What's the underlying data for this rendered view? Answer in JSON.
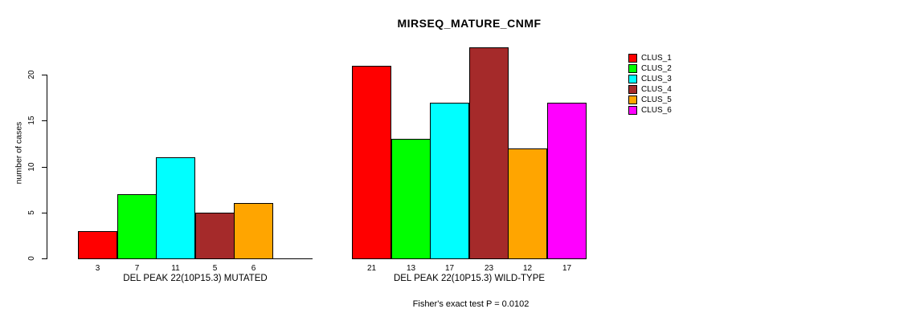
{
  "chart_data": {
    "type": "bar",
    "title": "MIRSEQ_MATURE_CNMF",
    "ylabel": "number of cases",
    "xlabel": "",
    "ylim": [
      0,
      23
    ],
    "yticks": [
      0,
      5,
      10,
      15,
      20
    ],
    "grid": false,
    "legend_position": "right",
    "categories": [
      "CLUS_1",
      "CLUS_2",
      "CLUS_3",
      "CLUS_4",
      "CLUS_5",
      "CLUS_6"
    ],
    "legend": [
      {
        "label": "CLUS_1",
        "color": "#ff0000"
      },
      {
        "label": "CLUS_2",
        "color": "#00ff00"
      },
      {
        "label": "CLUS_3",
        "color": "#00ffff"
      },
      {
        "label": "CLUS_4",
        "color": "#a52a2a"
      },
      {
        "label": "CLUS_5",
        "color": "#ffa500"
      },
      {
        "label": "CLUS_6",
        "color": "#ff00ff"
      }
    ],
    "groups": [
      {
        "label": "DEL PEAK 22(10P15.3) MUTATED",
        "values": [
          3,
          7,
          11,
          5,
          6,
          0
        ],
        "bar_labels": [
          "3",
          "7",
          "11",
          "5",
          "6",
          ""
        ]
      },
      {
        "label": "DEL PEAK 22(10P15.3) WILD-TYPE",
        "values": [
          21,
          13,
          17,
          23,
          12,
          17
        ],
        "bar_labels": [
          "21",
          "13",
          "17",
          "23",
          "12",
          "17"
        ]
      }
    ],
    "annotation": "Fisher's exact test P = 0.0102",
    "axis_color": "#000000",
    "background_color": "#ffffff"
  }
}
